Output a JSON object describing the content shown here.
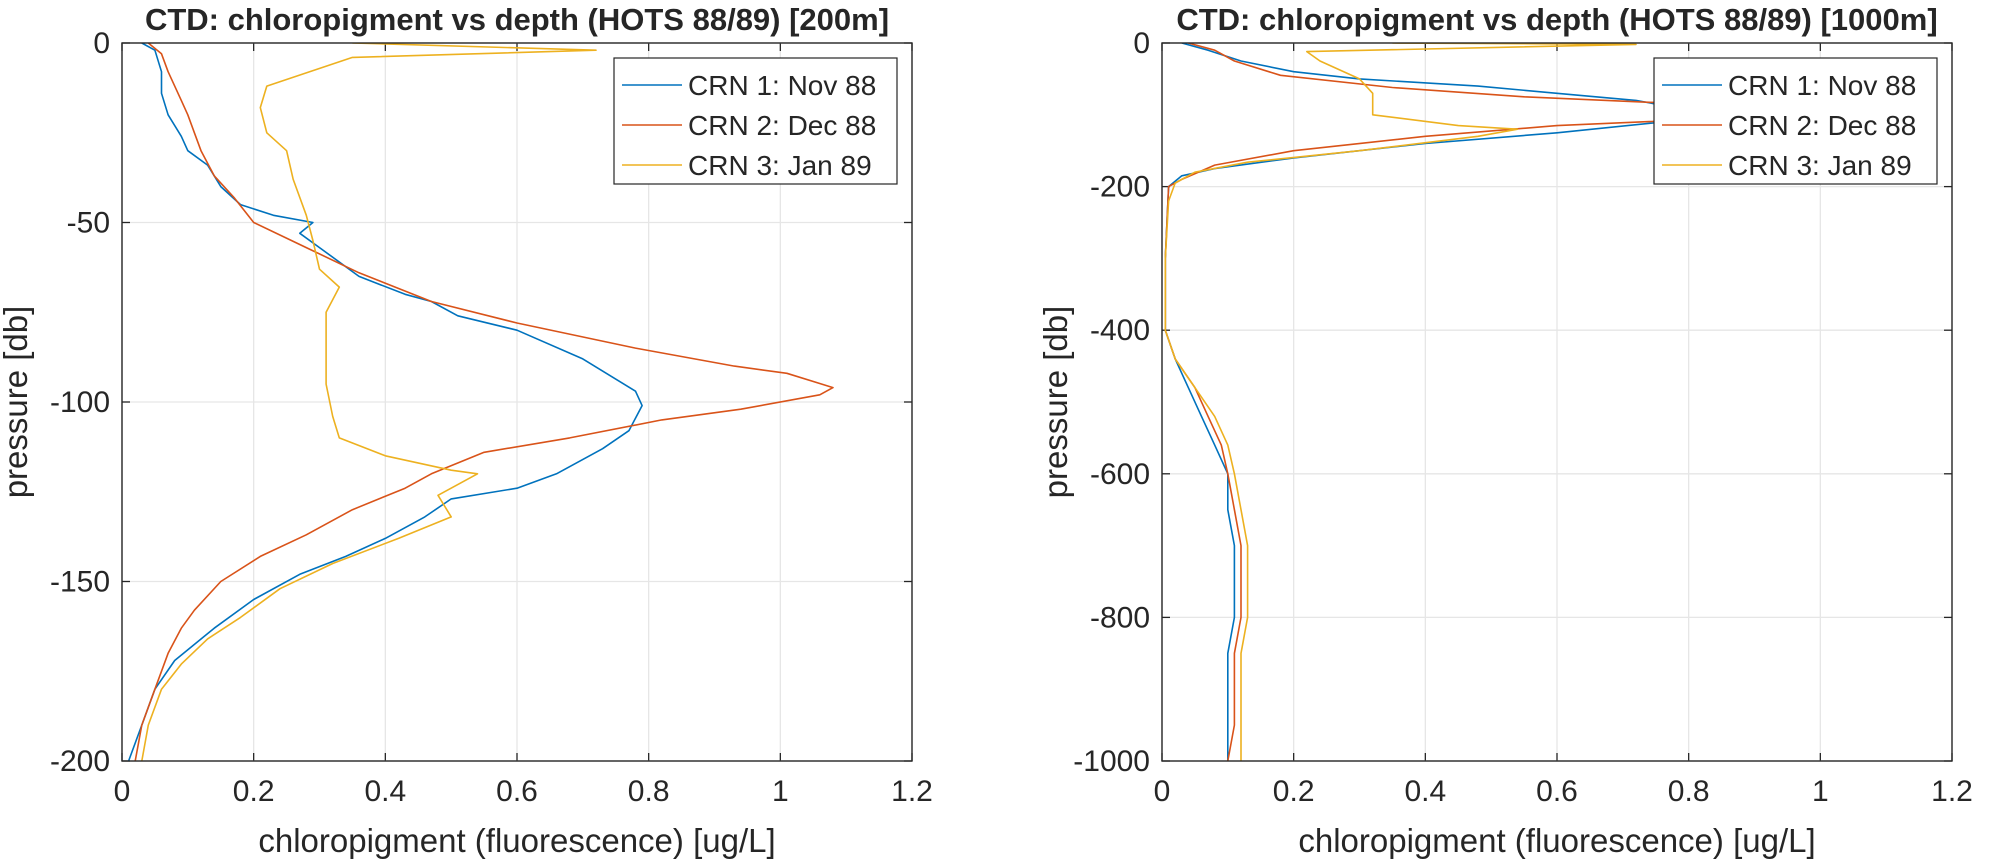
{
  "chart_data": [
    {
      "type": "line",
      "title": "CTD: chloropigment vs depth (HOTS 88/89) [200m]",
      "xlabel": "chloropigment (fluorescence) [ug/L]",
      "ylabel": "pressure [db]",
      "xlim": [
        0,
        1.2
      ],
      "ylim": [
        -200,
        0
      ],
      "xticks": [
        "0",
        "0.2",
        "0.4",
        "0.6",
        "0.8",
        "1",
        "1.2"
      ],
      "yticks": [
        "0",
        "-50",
        "-100",
        "-150",
        "-200"
      ],
      "grid": true,
      "legend": "top-right",
      "series": [
        {
          "name": "CRN 1: Nov 88",
          "color": "#0072BD",
          "points": [
            [
              0.03,
              0
            ],
            [
              0.05,
              -2
            ],
            [
              0.06,
              -8
            ],
            [
              0.06,
              -14
            ],
            [
              0.07,
              -20
            ],
            [
              0.09,
              -26
            ],
            [
              0.1,
              -30
            ],
            [
              0.13,
              -34
            ],
            [
              0.15,
              -40
            ],
            [
              0.18,
              -45
            ],
            [
              0.23,
              -48
            ],
            [
              0.29,
              -50
            ],
            [
              0.27,
              -53
            ],
            [
              0.3,
              -57
            ],
            [
              0.36,
              -65
            ],
            [
              0.43,
              -70
            ],
            [
              0.47,
              -72
            ],
            [
              0.51,
              -76
            ],
            [
              0.6,
              -80
            ],
            [
              0.7,
              -88
            ],
            [
              0.78,
              -97
            ],
            [
              0.79,
              -101
            ],
            [
              0.77,
              -108
            ],
            [
              0.73,
              -113
            ],
            [
              0.66,
              -120
            ],
            [
              0.6,
              -124
            ],
            [
              0.5,
              -127
            ],
            [
              0.46,
              -132
            ],
            [
              0.4,
              -138
            ],
            [
              0.34,
              -143
            ],
            [
              0.27,
              -148
            ],
            [
              0.2,
              -155
            ],
            [
              0.14,
              -163
            ],
            [
              0.08,
              -172
            ],
            [
              0.05,
              -180
            ],
            [
              0.03,
              -190
            ],
            [
              0.01,
              -200
            ]
          ]
        },
        {
          "name": "CRN 2: Dec 88",
          "color": "#D95319",
          "points": [
            [
              0.04,
              0
            ],
            [
              0.06,
              -3
            ],
            [
              0.07,
              -8
            ],
            [
              0.08,
              -12
            ],
            [
              0.09,
              -16
            ],
            [
              0.1,
              -20
            ],
            [
              0.11,
              -25
            ],
            [
              0.12,
              -30
            ],
            [
              0.14,
              -37
            ],
            [
              0.17,
              -43
            ],
            [
              0.2,
              -50
            ],
            [
              0.28,
              -57
            ],
            [
              0.36,
              -64
            ],
            [
              0.47,
              -72
            ],
            [
              0.6,
              -78
            ],
            [
              0.78,
              -85
            ],
            [
              0.93,
              -90
            ],
            [
              1.01,
              -92
            ],
            [
              1.08,
              -96
            ],
            [
              1.06,
              -98
            ],
            [
              0.94,
              -102
            ],
            [
              0.82,
              -105
            ],
            [
              0.68,
              -110
            ],
            [
              0.55,
              -114
            ],
            [
              0.47,
              -120
            ],
            [
              0.43,
              -124
            ],
            [
              0.35,
              -130
            ],
            [
              0.28,
              -137
            ],
            [
              0.21,
              -143
            ],
            [
              0.15,
              -150
            ],
            [
              0.11,
              -158
            ],
            [
              0.09,
              -163
            ],
            [
              0.07,
              -170
            ],
            [
              0.05,
              -180
            ],
            [
              0.03,
              -190
            ],
            [
              0.02,
              -200
            ]
          ]
        },
        {
          "name": "CRN 3: Jan 89",
          "color": "#EDB120",
          "points": [
            [
              0.35,
              0
            ],
            [
              0.72,
              -2
            ],
            [
              0.35,
              -4
            ],
            [
              0.22,
              -12
            ],
            [
              0.21,
              -18
            ],
            [
              0.22,
              -25
            ],
            [
              0.25,
              -30
            ],
            [
              0.26,
              -38
            ],
            [
              0.28,
              -48
            ],
            [
              0.29,
              -55
            ],
            [
              0.3,
              -63
            ],
            [
              0.33,
              -68
            ],
            [
              0.31,
              -75
            ],
            [
              0.31,
              -85
            ],
            [
              0.31,
              -95
            ],
            [
              0.32,
              -104
            ],
            [
              0.33,
              -110
            ],
            [
              0.4,
              -115
            ],
            [
              0.5,
              -119
            ],
            [
              0.54,
              -120
            ],
            [
              0.48,
              -126
            ],
            [
              0.5,
              -132
            ],
            [
              0.42,
              -138
            ],
            [
              0.32,
              -145
            ],
            [
              0.24,
              -152
            ],
            [
              0.18,
              -160
            ],
            [
              0.13,
              -166
            ],
            [
              0.09,
              -173
            ],
            [
              0.06,
              -180
            ],
            [
              0.04,
              -190
            ],
            [
              0.03,
              -200
            ]
          ]
        }
      ]
    },
    {
      "type": "line",
      "title": "CTD: chloropigment vs depth (HOTS 88/89) [1000m]",
      "xlabel": "chloropigment (fluorescence) [ug/L]",
      "ylabel": "pressure [db]",
      "xlim": [
        0,
        1.2
      ],
      "ylim": [
        -1000,
        0
      ],
      "xticks": [
        "0",
        "0.2",
        "0.4",
        "0.6",
        "0.8",
        "1",
        "1.2"
      ],
      "yticks": [
        "0",
        "-200",
        "-400",
        "-600",
        "-800",
        "-1000"
      ],
      "grid": true,
      "legend": "top-right",
      "series": [
        {
          "name": "CRN 1: Nov 88",
          "color": "#0072BD",
          "points": [
            [
              0.03,
              0
            ],
            [
              0.07,
              -10
            ],
            [
              0.12,
              -25
            ],
            [
              0.2,
              -40
            ],
            [
              0.3,
              -50
            ],
            [
              0.48,
              -60
            ],
            [
              0.6,
              -70
            ],
            [
              0.72,
              -80
            ],
            [
              0.78,
              -90
            ],
            [
              0.8,
              -100
            ],
            [
              0.76,
              -110
            ],
            [
              0.6,
              -125
            ],
            [
              0.4,
              -140
            ],
            [
              0.2,
              -160
            ],
            [
              0.08,
              -175
            ],
            [
              0.03,
              -185
            ],
            [
              0.01,
              -200
            ],
            [
              0.005,
              -300
            ],
            [
              0.005,
              -400
            ],
            [
              0.02,
              -440
            ],
            [
              0.04,
              -480
            ],
            [
              0.06,
              -520
            ],
            [
              0.08,
              -560
            ],
            [
              0.1,
              -600
            ],
            [
              0.1,
              -650
            ],
            [
              0.11,
              -700
            ],
            [
              0.11,
              -750
            ],
            [
              0.11,
              -800
            ],
            [
              0.1,
              -850
            ],
            [
              0.1,
              -900
            ],
            [
              0.1,
              -950
            ],
            [
              0.1,
              -1000
            ]
          ]
        },
        {
          "name": "CRN 2: Dec 88",
          "color": "#D95319",
          "points": [
            [
              0.04,
              0
            ],
            [
              0.08,
              -10
            ],
            [
              0.11,
              -25
            ],
            [
              0.18,
              -45
            ],
            [
              0.35,
              -62
            ],
            [
              0.55,
              -75
            ],
            [
              0.8,
              -85
            ],
            [
              1.0,
              -92
            ],
            [
              1.08,
              -96
            ],
            [
              0.9,
              -103
            ],
            [
              0.6,
              -115
            ],
            [
              0.4,
              -130
            ],
            [
              0.2,
              -150
            ],
            [
              0.08,
              -170
            ],
            [
              0.03,
              -190
            ],
            [
              0.01,
              -200
            ],
            [
              0.005,
              -300
            ],
            [
              0.005,
              -400
            ],
            [
              0.02,
              -440
            ],
            [
              0.05,
              -480
            ],
            [
              0.07,
              -520
            ],
            [
              0.09,
              -560
            ],
            [
              0.1,
              -600
            ],
            [
              0.11,
              -650
            ],
            [
              0.12,
              -700
            ],
            [
              0.12,
              -750
            ],
            [
              0.12,
              -800
            ],
            [
              0.11,
              -850
            ],
            [
              0.11,
              -900
            ],
            [
              0.11,
              -950
            ],
            [
              0.1,
              -1000
            ]
          ]
        },
        {
          "name": "CRN 3: Jan 89",
          "color": "#EDB120",
          "points": [
            [
              0.35,
              0
            ],
            [
              0.72,
              -2
            ],
            [
              0.22,
              -12
            ],
            [
              0.24,
              -25
            ],
            [
              0.3,
              -50
            ],
            [
              0.32,
              -70
            ],
            [
              0.32,
              -100
            ],
            [
              0.45,
              -115
            ],
            [
              0.54,
              -120
            ],
            [
              0.48,
              -130
            ],
            [
              0.3,
              -150
            ],
            [
              0.13,
              -166
            ],
            [
              0.05,
              -180
            ],
            [
              0.02,
              -195
            ],
            [
              0.01,
              -220
            ],
            [
              0.005,
              -300
            ],
            [
              0.005,
              -400
            ],
            [
              0.02,
              -440
            ],
            [
              0.05,
              -480
            ],
            [
              0.08,
              -520
            ],
            [
              0.1,
              -560
            ],
            [
              0.11,
              -600
            ],
            [
              0.12,
              -650
            ],
            [
              0.13,
              -700
            ],
            [
              0.13,
              -750
            ],
            [
              0.13,
              -800
            ],
            [
              0.12,
              -850
            ],
            [
              0.12,
              -900
            ],
            [
              0.12,
              -950
            ],
            [
              0.12,
              -1000
            ]
          ]
        }
      ]
    }
  ]
}
